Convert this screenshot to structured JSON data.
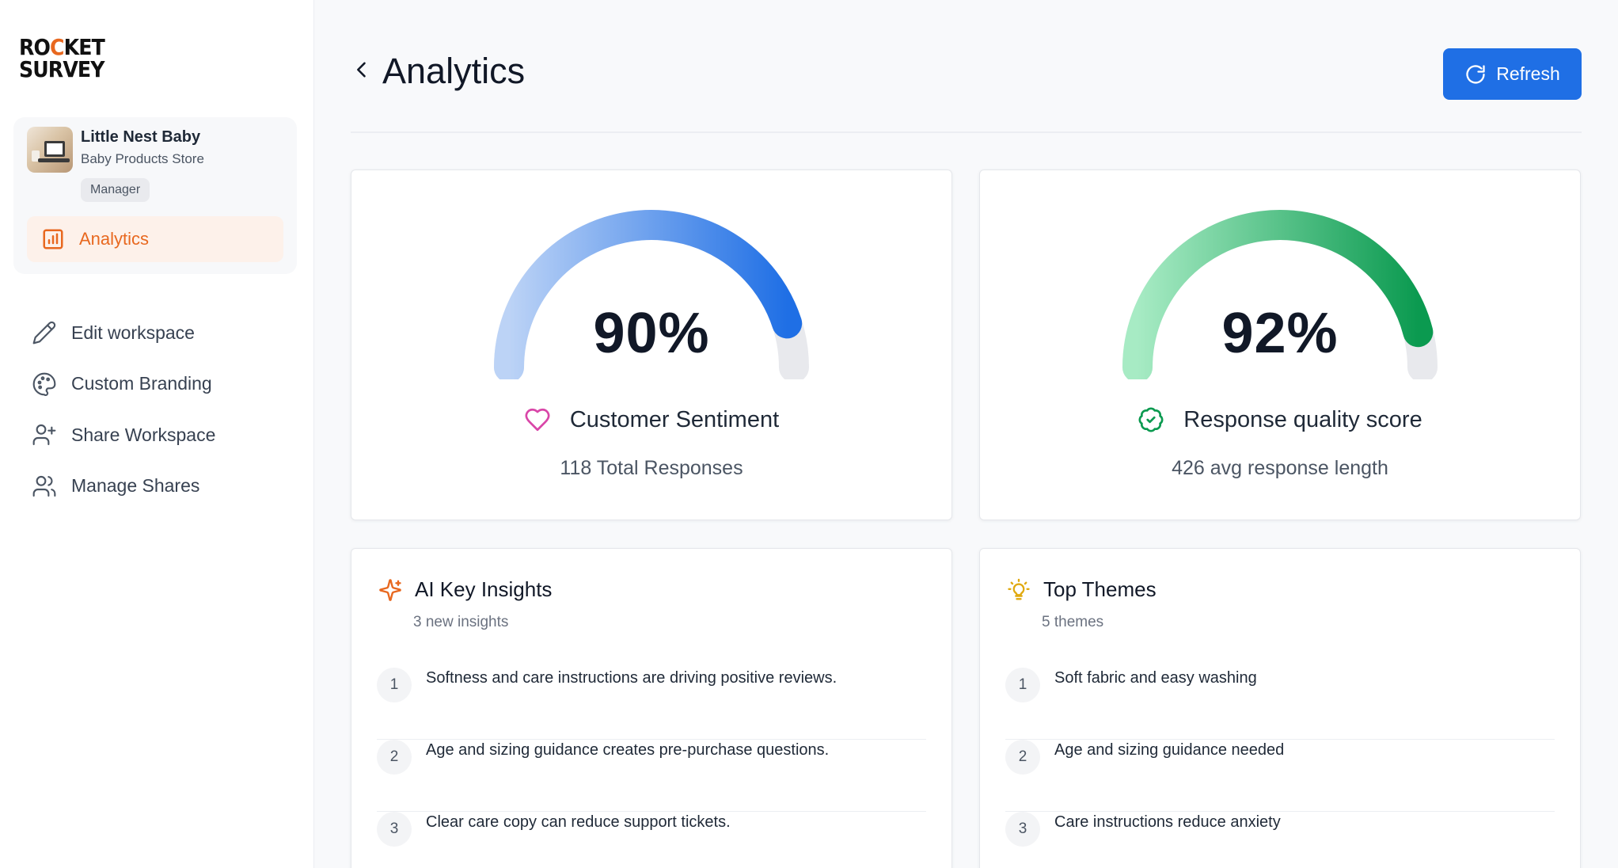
{
  "brand": {
    "logo_line1": "ROCKET",
    "logo_line1_a": "RO",
    "logo_line1_o": "C",
    "logo_line1_b": "KET",
    "logo_line2": "SURVEY",
    "accent": "#e8681f"
  },
  "workspace": {
    "name": "Little Nest Baby",
    "subtitle": "Baby Products Store",
    "role": "Manager"
  },
  "sidebar": {
    "active_item": {
      "label": "Analytics",
      "icon": "bar-chart-icon"
    },
    "items": [
      {
        "label": "Edit workspace",
        "icon": "pencil-icon"
      },
      {
        "label": "Custom Branding",
        "icon": "palette-icon"
      },
      {
        "label": "Share Workspace",
        "icon": "user-plus-icon"
      },
      {
        "label": "Manage Shares",
        "icon": "users-icon"
      }
    ]
  },
  "header": {
    "title": "Analytics",
    "refresh_label": "Refresh",
    "primary_color": "#1f6fe5"
  },
  "gauges": [
    {
      "value_text": "90%",
      "value": 0.9,
      "label": "Customer Sentiment",
      "sub": "118 Total Responses",
      "icon": "heart-icon",
      "color_start": "#bcd3f6",
      "color_end": "#1f6fe5"
    },
    {
      "value_text": "92%",
      "value": 0.92,
      "label": "Response quality score",
      "sub": "426 avg response length",
      "icon": "badge-check-icon",
      "color_start": "#a7ebc4",
      "color_end": "#0b9a50"
    }
  ],
  "insights": {
    "title": "AI Key Insights",
    "subtitle": "3 new insights",
    "items": [
      {
        "num": "1",
        "text": "Softness and care instructions are driving positive reviews."
      },
      {
        "num": "2",
        "text": "Age and sizing guidance creates pre-purchase questions."
      },
      {
        "num": "3",
        "text": "Clear care copy can reduce support tickets."
      }
    ]
  },
  "themes": {
    "title": "Top Themes",
    "subtitle": "5 themes",
    "items": [
      {
        "num": "1",
        "text": "Soft fabric and easy washing"
      },
      {
        "num": "2",
        "text": "Age and sizing guidance needed"
      },
      {
        "num": "3",
        "text": "Care instructions reduce anxiety"
      }
    ]
  }
}
